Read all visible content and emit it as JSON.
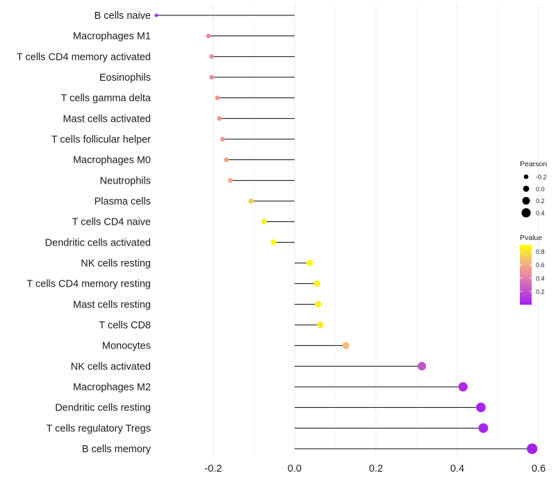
{
  "chart_data": {
    "type": "lollipop",
    "title": "",
    "xlabel": "",
    "ylabel": "",
    "xlim": [
      -0.345,
      0.6
    ],
    "xticks": [
      -0.2,
      0.0,
      0.2,
      0.4,
      0.6
    ],
    "xtick_labels": [
      "-0.2",
      "0.0",
      "0.2",
      "0.4",
      "0.6"
    ],
    "grid": true,
    "categories": [
      "B cells naive",
      "Macrophages M1",
      "T cells CD4 memory activated",
      "Eosinophils",
      "T cells gamma delta",
      "Mast cells activated",
      "T cells follicular helper",
      "Macrophages M0",
      "Neutrophils",
      "Plasma cells",
      "T cells CD4 naive",
      "Dendritic cells activated",
      "NK cells resting",
      "T cells CD4 memory resting",
      "Mast cells resting",
      "T cells CD8",
      "Monocytes",
      "NK cells activated",
      "Macrophages M2",
      "Dendritic cells resting",
      "T cells regulatory  Tregs",
      "B cells memory"
    ],
    "pearson": [
      -0.34,
      -0.212,
      -0.204,
      -0.204,
      -0.19,
      -0.185,
      -0.177,
      -0.168,
      -0.158,
      -0.107,
      -0.075,
      -0.052,
      0.037,
      0.055,
      0.058,
      0.063,
      0.126,
      0.313,
      0.414,
      0.458,
      0.464,
      0.584
    ],
    "pvalue": [
      0.05,
      0.42,
      0.45,
      0.45,
      0.5,
      0.5,
      0.52,
      0.54,
      0.58,
      0.72,
      0.85,
      0.88,
      0.9,
      0.86,
      0.84,
      0.82,
      0.65,
      0.22,
      0.06,
      0.03,
      0.03,
      0.01
    ],
    "legend": {
      "size_title": "Pearson",
      "size_labels": [
        "-0.2",
        "0.0",
        "0.2",
        "0.4"
      ],
      "size_values": [
        -0.2,
        0.0,
        0.2,
        0.4
      ],
      "color_title": "Pvalue",
      "color_labels": [
        "0.8",
        "0.6",
        "0.4",
        "0.2"
      ],
      "color_values": [
        0.8,
        0.6,
        0.4,
        0.2
      ],
      "color_range": [
        0.0,
        0.9
      ],
      "color_low": "#a020f0",
      "color_high": "#ffff00",
      "position": "right"
    }
  },
  "colors": {
    "stem": "#000000",
    "grid": "#ebebeb"
  }
}
